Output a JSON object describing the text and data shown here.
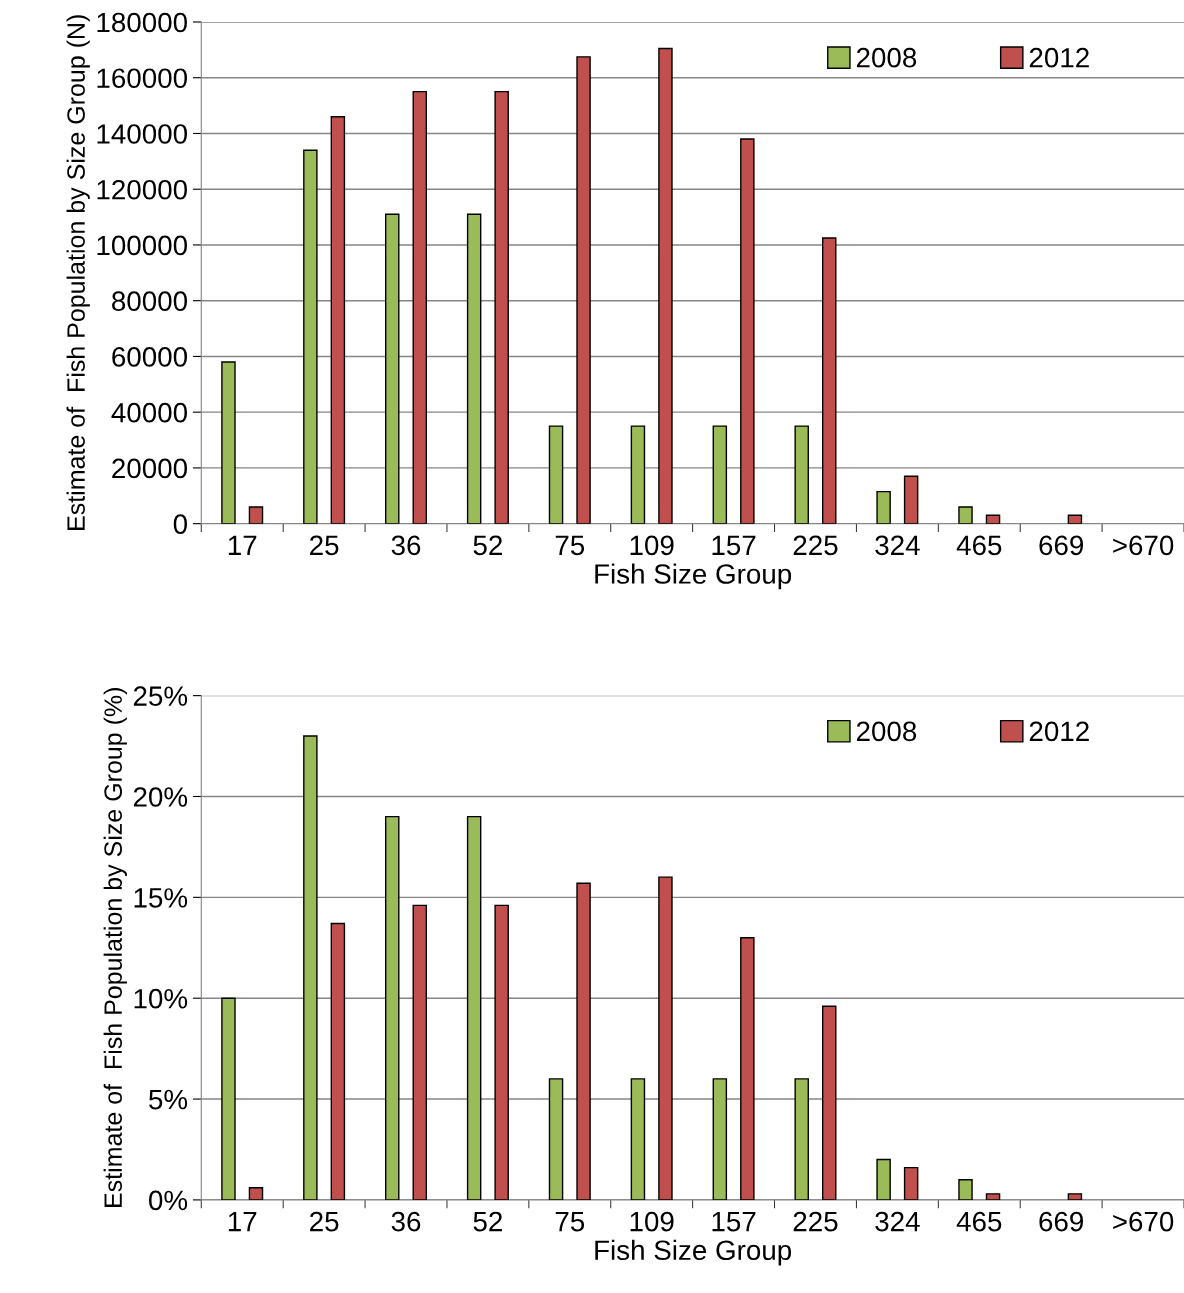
{
  "chart_data": [
    {
      "type": "bar",
      "xlabel": "Fish Size Group",
      "ylabel": "Estimate of  Fish Population by Size Group (N)",
      "categories": [
        "17",
        "25",
        "36",
        "52",
        "75",
        "109",
        "157",
        "225",
        "324",
        "465",
        "669",
        ">670"
      ],
      "series": [
        {
          "name": "2008",
          "color": "#9bbb59",
          "values": [
            58000,
            134000,
            111000,
            111000,
            35000,
            35000,
            35000,
            35000,
            11500,
            6000,
            null,
            null
          ]
        },
        {
          "name": "2012",
          "color": "#c0504d",
          "values": [
            6000,
            146000,
            155000,
            155000,
            167500,
            170500,
            138000,
            102500,
            17000,
            3000,
            3000,
            null
          ]
        }
      ],
      "ylim": [
        0,
        180000
      ],
      "yticks": [
        0,
        20000,
        40000,
        60000,
        80000,
        100000,
        120000,
        140000,
        160000,
        180000
      ],
      "grid": "y",
      "legend": "top right"
    },
    {
      "type": "bar",
      "xlabel": "Fish Size Group",
      "ylabel": "Estimate of  Fish Population by Size Group (%)",
      "categories": [
        "17",
        "25",
        "36",
        "52",
        "75",
        "109",
        "157",
        "225",
        "324",
        "465",
        "669",
        ">670"
      ],
      "series": [
        {
          "name": "2008",
          "color": "#9bbb59",
          "values": [
            10,
            23,
            19,
            19,
            6,
            6,
            6,
            6,
            2,
            1,
            null,
            null
          ]
        },
        {
          "name": "2012",
          "color": "#c0504d",
          "values": [
            0.6,
            13.7,
            14.6,
            14.6,
            15.7,
            16.0,
            13.0,
            9.6,
            1.6,
            0.3,
            0.3,
            null
          ]
        }
      ],
      "ylim": [
        0,
        25
      ],
      "yticks": [
        {
          "value": 0,
          "label": "0%"
        },
        {
          "value": 5,
          "label": "5%"
        },
        {
          "value": 10,
          "label": "10%"
        },
        {
          "value": 15,
          "label": "15%"
        },
        {
          "value": 20,
          "label": "20%"
        },
        {
          "value": 25,
          "label": "25%"
        }
      ],
      "grid": "y",
      "legend": "top right"
    }
  ]
}
